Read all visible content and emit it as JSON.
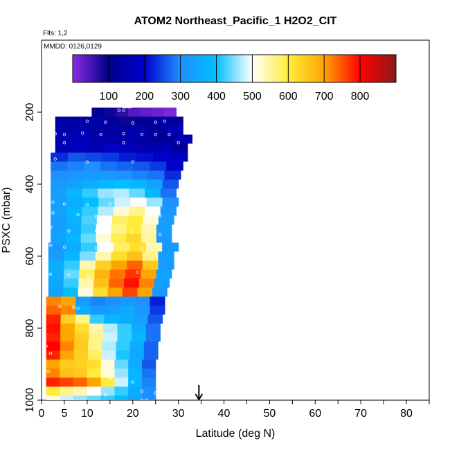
{
  "chart_data": {
    "type": "heatmap",
    "title": "ATOM2 Northeast_Pacific_1 H2O2_CIT",
    "flights_label": "Flts: 1,2",
    "dates_label": "MMDD: 0126,0129",
    "xlabel": "Latitude (deg N)",
    "ylabel": "PSXC (mbar)",
    "xlim": [
      0,
      85
    ],
    "ylim": [
      1000,
      0
    ],
    "x_ticks": [
      0,
      5,
      10,
      20,
      30,
      40,
      50,
      60,
      70,
      80
    ],
    "y_ticks": [
      200,
      400,
      600,
      800,
      1000
    ],
    "colorbar": {
      "min": 0,
      "max": 900,
      "ticks": [
        100,
        200,
        300,
        400,
        500,
        600,
        700,
        800
      ],
      "stops": [
        "#8B2BE2",
        "#00008B",
        "#0000CD",
        "#1E90FF",
        "#00BFFF",
        "#FFFFFF",
        "#FFEC3A",
        "#FFA500",
        "#FF0000",
        "#8B1A1A"
      ]
    },
    "arrow_latitude": 34.5,
    "bands": [
      {
        "p": 200,
        "lat": [
          11,
          29.5
        ],
        "c": [
          110,
          90,
          70,
          40,
          30,
          20,
          10
        ]
      },
      {
        "p": 225,
        "lat": [
          3,
          31
        ],
        "c": [
          140,
          130,
          150,
          120,
          90,
          110,
          140,
          120
        ]
      },
      {
        "p": 250,
        "lat": [
          3,
          31
        ],
        "c": [
          150,
          160,
          130,
          140,
          150,
          120,
          160
        ]
      },
      {
        "p": 275,
        "lat": [
          3,
          33
        ],
        "c": [
          160,
          170,
          150,
          140,
          150,
          130,
          120,
          150
        ]
      },
      {
        "p": 300,
        "lat": [
          3,
          32
        ],
        "c": [
          170,
          180,
          160,
          190,
          170,
          150,
          160,
          120
        ]
      },
      {
        "p": 325,
        "lat": [
          2,
          32
        ],
        "c": [
          230,
          260,
          250,
          240,
          220,
          210,
          200,
          180
        ]
      },
      {
        "p": 350,
        "lat": [
          2,
          31
        ],
        "c": [
          280,
          290,
          300,
          280,
          270,
          260,
          240,
          200
        ]
      },
      {
        "p": 375,
        "lat": [
          2,
          30.5
        ],
        "c": [
          300,
          310,
          320,
          320,
          300,
          290,
          280,
          230
        ]
      },
      {
        "p": 400,
        "lat": [
          2,
          30
        ],
        "c": [
          320,
          340,
          360,
          380,
          400,
          380,
          340,
          260
        ]
      },
      {
        "p": 425,
        "lat": [
          2,
          29.5
        ],
        "c": [
          330,
          380,
          420,
          460,
          470,
          440,
          380,
          280
        ]
      },
      {
        "p": 450,
        "lat": [
          2,
          30
        ],
        "c": [
          330,
          360,
          400,
          440,
          480,
          500,
          460,
          300
        ]
      },
      {
        "p": 475,
        "lat": [
          2,
          29.5
        ],
        "c": [
          340,
          380,
          420,
          470,
          520,
          560,
          500,
          320
        ]
      },
      {
        "p": 500,
        "lat": [
          2,
          29
        ],
        "c": [
          330,
          370,
          430,
          500,
          580,
          600,
          520,
          330
        ]
      },
      {
        "p": 525,
        "lat": [
          2,
          28.5
        ],
        "c": [
          330,
          360,
          420,
          500,
          560,
          600,
          540,
          330
        ]
      },
      {
        "p": 550,
        "lat": [
          2,
          28.5
        ],
        "c": [
          340,
          380,
          440,
          520,
          590,
          630,
          550,
          320
        ]
      },
      {
        "p": 575,
        "lat": [
          1.5,
          30
        ],
        "c": [
          320,
          360,
          420,
          500,
          580,
          620,
          540,
          320
        ]
      },
      {
        "p": 600,
        "lat": [
          1.5,
          29
        ],
        "c": [
          330,
          380,
          450,
          540,
          620,
          660,
          560,
          330
        ]
      },
      {
        "p": 625,
        "lat": [
          1.5,
          29
        ],
        "c": [
          360,
          420,
          540,
          640,
          700,
          740,
          650,
          330
        ]
      },
      {
        "p": 650,
        "lat": [
          1.5,
          28.5
        ],
        "c": [
          360,
          440,
          580,
          680,
          730,
          770,
          700,
          340
        ]
      },
      {
        "p": 675,
        "lat": [
          1.5,
          28
        ],
        "c": [
          350,
          420,
          540,
          660,
          740,
          790,
          720,
          330
        ]
      },
      {
        "p": 700,
        "lat": [
          1.5,
          27.5
        ],
        "c": [
          340,
          400,
          520,
          620,
          700,
          760,
          700,
          320
        ]
      },
      {
        "p": 725,
        "lat": [
          1,
          27
        ],
        "c": [
          720,
          700,
          330,
          290,
          300,
          320,
          300,
          220
        ]
      },
      {
        "p": 750,
        "lat": [
          1,
          27
        ],
        "c": [
          740,
          720,
          360,
          320,
          330,
          350,
          320,
          240
        ]
      },
      {
        "p": 775,
        "lat": [
          1,
          26.5
        ],
        "c": [
          780,
          640,
          560,
          420,
          380,
          360,
          340,
          260
        ]
      },
      {
        "p": 800,
        "lat": [
          1,
          26
        ],
        "c": [
          790,
          700,
          620,
          540,
          470,
          420,
          360,
          280
        ]
      },
      {
        "p": 825,
        "lat": [
          1,
          26
        ],
        "c": [
          780,
          700,
          640,
          560,
          480,
          420,
          380,
          280
        ]
      },
      {
        "p": 850,
        "lat": [
          1,
          25.5
        ],
        "c": [
          800,
          720,
          650,
          560,
          470,
          420,
          360,
          270
        ]
      },
      {
        "p": 875,
        "lat": [
          1,
          25.5
        ],
        "c": [
          780,
          700,
          640,
          580,
          480,
          410,
          350,
          270
        ]
      },
      {
        "p": 900,
        "lat": [
          1,
          25
        ],
        "c": [
          700,
          650,
          640,
          620,
          520,
          440,
          360,
          260
        ]
      },
      {
        "p": 925,
        "lat": [
          1,
          25
        ],
        "c": [
          720,
          660,
          650,
          600,
          520,
          460,
          380,
          280
        ]
      },
      {
        "p": 950,
        "lat": [
          1,
          25
        ],
        "c": [
          780,
          760,
          740,
          700,
          600,
          480,
          380,
          290
        ]
      },
      {
        "p": 975,
        "lat": [
          1,
          25
        ],
        "c": [
          600,
          560,
          540,
          500,
          460,
          420,
          360,
          300
        ]
      },
      {
        "p": 1000,
        "lat": [
          1,
          25
        ],
        "c": [
          520,
          480,
          460,
          440,
          420,
          400,
          340,
          300
        ]
      }
    ],
    "sample_points": [
      [
        18,
        185
      ],
      [
        18.5,
        185
      ],
      [
        19,
        185
      ],
      [
        19.5,
        185
      ],
      [
        17,
        195
      ],
      [
        18,
        195
      ],
      [
        10,
        225
      ],
      [
        14,
        228
      ],
      [
        20,
        230
      ],
      [
        25,
        228
      ],
      [
        27,
        225
      ],
      [
        3,
        260
      ],
      [
        5,
        262
      ],
      [
        9,
        258
      ],
      [
        13,
        262
      ],
      [
        18,
        260
      ],
      [
        22,
        262
      ],
      [
        25,
        262
      ],
      [
        28,
        262
      ],
      [
        5,
        285
      ],
      [
        18,
        285
      ],
      [
        30,
        285
      ],
      [
        3,
        330
      ],
      [
        10,
        338
      ],
      [
        20,
        338
      ],
      [
        2.5,
        450
      ],
      [
        5,
        455
      ],
      [
        10,
        457
      ],
      [
        15,
        455
      ],
      [
        21,
        448
      ],
      [
        2.5,
        480
      ],
      [
        8,
        485
      ],
      [
        12,
        490
      ],
      [
        18,
        485
      ],
      [
        26,
        488
      ],
      [
        2,
        520
      ],
      [
        6,
        530
      ],
      [
        12,
        530
      ],
      [
        20,
        535
      ],
      [
        26,
        540
      ],
      [
        2,
        570
      ],
      [
        5,
        575
      ],
      [
        12,
        578
      ],
      [
        22,
        580
      ],
      [
        2,
        650
      ],
      [
        6,
        652
      ],
      [
        10,
        655
      ],
      [
        21,
        645
      ],
      [
        4,
        740
      ],
      [
        7,
        742
      ],
      [
        8,
        745
      ],
      [
        1,
        850
      ],
      [
        2,
        870
      ],
      [
        1.5,
        920
      ],
      [
        15,
        940
      ],
      [
        20,
        950
      ],
      [
        22,
        975
      ],
      [
        25,
        980
      ],
      [
        1,
        1000
      ],
      [
        22,
        1000
      ],
      [
        23,
        1000
      ],
      [
        14,
        985
      ]
    ]
  }
}
